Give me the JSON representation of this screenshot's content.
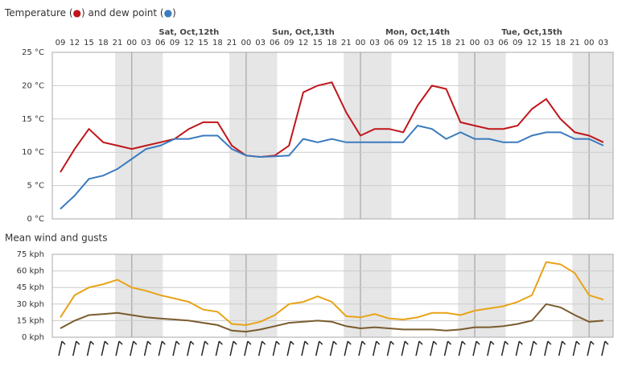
{
  "chart_data": [
    {
      "type": "line",
      "title": "Temperature (●) and dew point (●)",
      "categories": [
        "09",
        "12",
        "15",
        "18",
        "21",
        "00",
        "03",
        "06",
        "09",
        "12",
        "15",
        "18",
        "21",
        "00",
        "03",
        "06",
        "09",
        "12",
        "15",
        "18",
        "21",
        "00",
        "03",
        "06",
        "09",
        "12",
        "15",
        "18",
        "21",
        "00",
        "03",
        "06",
        "09",
        "12",
        "15",
        "18",
        "21",
        "00",
        "03"
      ],
      "day_labels": [
        "Sat, Oct,12th",
        "Sun, Oct,13th",
        "Mon, Oct,14th",
        "Tue, Oct,15th"
      ],
      "series": [
        {
          "name": "Temperature",
          "color": "#c0161b",
          "values": [
            7,
            10.5,
            13.5,
            11.5,
            11,
            10.5,
            11,
            11.5,
            12,
            13.5,
            14.5,
            14.5,
            11,
            9.5,
            9.3,
            9.5,
            11,
            19,
            20,
            20.5,
            16,
            12.5,
            13.5,
            13.5,
            13,
            17,
            20,
            19.5,
            14.5,
            14,
            13.5,
            13.5,
            14,
            16.5,
            18,
            15,
            13,
            12.5,
            11.5
          ]
        },
        {
          "name": "dew point",
          "color": "#3b7bbf",
          "values": [
            1.5,
            3.5,
            6,
            6.5,
            7.5,
            9,
            10.5,
            11,
            12,
            12,
            12.5,
            12.5,
            10.5,
            9.5,
            9.3,
            9.4,
            9.5,
            12,
            11.5,
            12,
            11.5,
            11.5,
            11.5,
            11.5,
            11.5,
            14,
            13.5,
            12,
            13,
            12,
            12,
            11.5,
            11.5,
            12.5,
            13,
            13,
            12,
            12,
            11
          ]
        }
      ],
      "ylim": [
        0,
        25
      ],
      "yticks": [
        {
          "value": 0,
          "label": "0 °C"
        },
        {
          "value": 5,
          "label": "5 °C"
        },
        {
          "value": 10,
          "label": "10 °C"
        },
        {
          "value": 15,
          "label": "15 °C"
        },
        {
          "value": 20,
          "label": "20 °C"
        },
        {
          "value": 25,
          "label": "25 °C"
        }
      ],
      "grid": true
    },
    {
      "type": "line",
      "title": "Mean wind and gusts",
      "series": [
        {
          "name": "gusts",
          "color": "#e8a317",
          "values": [
            18,
            38,
            45,
            48,
            52,
            45,
            42,
            38,
            35,
            32,
            25,
            23,
            12,
            11,
            14,
            20,
            30,
            32,
            37,
            32,
            19,
            18,
            21,
            17,
            16,
            18,
            22,
            22,
            20,
            24,
            26,
            28,
            32,
            38,
            68,
            66,
            58,
            38,
            34
          ]
        },
        {
          "name": "mean",
          "color": "#7a5c2e",
          "values": [
            8,
            15,
            20,
            21,
            22,
            20,
            18,
            17,
            16,
            15,
            13,
            11,
            6,
            5,
            7,
            10,
            13,
            14,
            15,
            14,
            10,
            8,
            9,
            8,
            7,
            7,
            7,
            6,
            7,
            9,
            9,
            10,
            12,
            15,
            30,
            27,
            20,
            14,
            15
          ]
        }
      ],
      "ylim": [
        0,
        75
      ],
      "yticks": [
        {
          "value": 0,
          "label": "0 kph"
        },
        {
          "value": 15,
          "label": "15 kph"
        },
        {
          "value": 30,
          "label": "30 kph"
        },
        {
          "value": 45,
          "label": "45 kph"
        },
        {
          "value": 60,
          "label": "60 kph"
        },
        {
          "value": 75,
          "label": "75 kph"
        }
      ],
      "grid": true
    }
  ]
}
